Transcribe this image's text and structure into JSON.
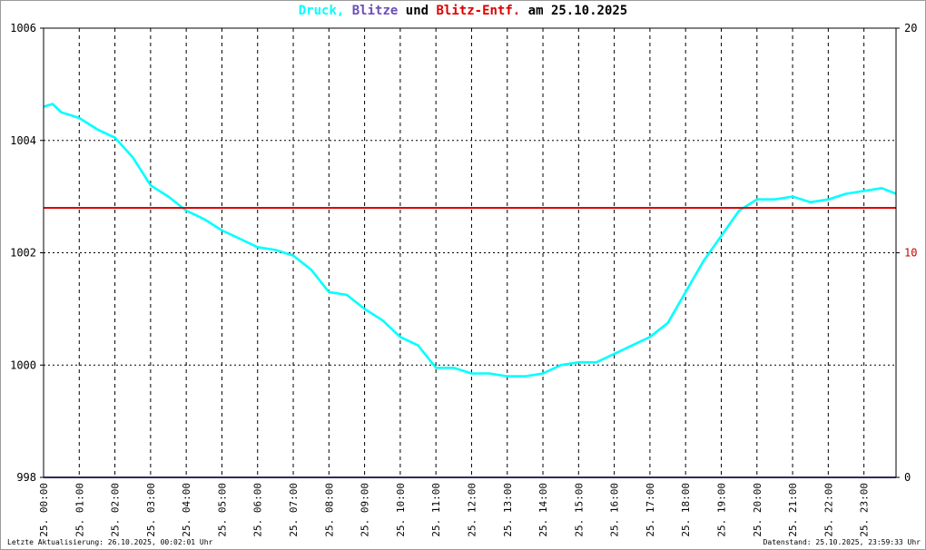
{
  "title": {
    "druck": "Druck,",
    "blitze": "Blitze",
    "und": "und",
    "blitz_entf": "Blitz-Entf.",
    "am": "am",
    "date": "25.10.2025"
  },
  "colors": {
    "druck": "#00ffff",
    "blitze": "#6c4fb8",
    "blitz_entf": "#dd0000",
    "text": "#000000",
    "grid": "#000000",
    "right_axis_ten": "#cc0000"
  },
  "footer": {
    "left": "Letzte Aktualisierung: 26.10.2025, 00:02:01 Uhr",
    "right": "Datenstand: 25.10.2025, 23:59:33 Uhr"
  },
  "chart_data": {
    "type": "line",
    "y_left": {
      "range": [
        998,
        1006
      ],
      "ticks": [
        "998",
        "1000",
        "1002",
        "1004",
        "1006"
      ]
    },
    "y_right": {
      "range": [
        0,
        20
      ],
      "ticks": [
        "0",
        "10",
        "20"
      ]
    },
    "x_ticks": [
      "25. 00:00",
      "25. 01:00",
      "25. 02:00",
      "25. 03:00",
      "25. 04:00",
      "25. 05:00",
      "25. 06:00",
      "25. 07:00",
      "25. 08:00",
      "25. 09:00",
      "25. 10:00",
      "25. 11:00",
      "25. 12:00",
      "25. 13:00",
      "25. 14:00",
      "25. 15:00",
      "25. 16:00",
      "25. 17:00",
      "25. 18:00",
      "25. 19:00",
      "25. 20:00",
      "25. 21:00",
      "25. 22:00",
      "25. 23:00"
    ],
    "x_range_hours": [
      0,
      23.9
    ],
    "grid": true,
    "series": [
      {
        "name": "Druck",
        "axis": "left",
        "x_hours": [
          0,
          0.25,
          0.5,
          0.75,
          1,
          1.5,
          2,
          2.5,
          3,
          3.5,
          4,
          4.5,
          5,
          5.5,
          6,
          6.5,
          7,
          7.5,
          8,
          8.5,
          9,
          9.5,
          10,
          10.5,
          11,
          11.5,
          12,
          12.5,
          13,
          13.5,
          14,
          14.5,
          15,
          15.5,
          16,
          16.5,
          17,
          17.5,
          18,
          18.5,
          19,
          19.5,
          20,
          20.5,
          21,
          21.5,
          22,
          22.5,
          23,
          23.5,
          23.9
        ],
        "values": [
          1004.6,
          1004.65,
          1004.5,
          1004.45,
          1004.4,
          1004.2,
          1004.05,
          1003.7,
          1003.2,
          1003.0,
          1002.75,
          1002.6,
          1002.4,
          1002.25,
          1002.1,
          1002.05,
          1001.95,
          1001.7,
          1001.3,
          1001.25,
          1001.0,
          1000.8,
          1000.5,
          1000.35,
          999.95,
          999.95,
          999.85,
          999.85,
          999.8,
          999.8,
          999.85,
          1000.0,
          1000.05,
          1000.05,
          1000.2,
          1000.35,
          1000.5,
          1000.75,
          1001.3,
          1001.85,
          1002.3,
          1002.75,
          1002.95,
          1002.95,
          1003.0,
          1002.9,
          1002.95,
          1003.05,
          1003.1,
          1003.15,
          1003.05
        ]
      },
      {
        "name": "Blitze",
        "axis": "right",
        "x_hours": [
          0,
          23.9
        ],
        "values": [
          0,
          0
        ]
      },
      {
        "name": "Blitz-Entf.",
        "axis": "right",
        "x_hours": [
          0,
          23.9
        ],
        "values": [
          12,
          12
        ]
      }
    ]
  }
}
